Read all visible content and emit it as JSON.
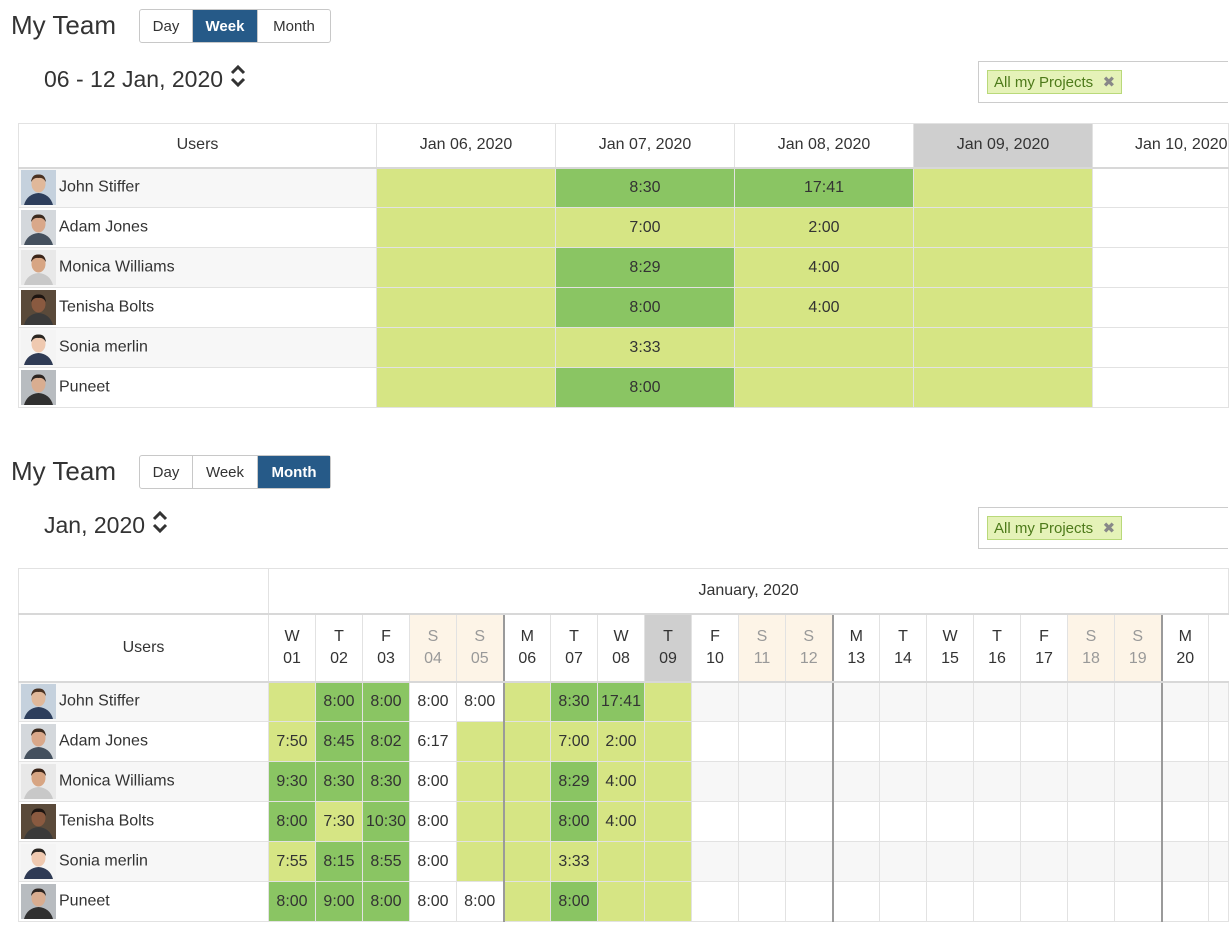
{
  "week_view": {
    "title": "My Team",
    "view_buttons": [
      "Day",
      "Week",
      "Month"
    ],
    "active_view": "Week",
    "period": "06 - 12 Jan, 2020",
    "filter_tag": "All my Projects",
    "users_header": "Users",
    "dates": [
      "Jan 06, 2020",
      "Jan 07, 2020",
      "Jan 08, 2020",
      "Jan 09, 2020",
      "Jan 10, 2020"
    ],
    "rows": [
      {
        "name": "John Stiffer",
        "cells": [
          "",
          "8:30",
          "17:41",
          "",
          ""
        ]
      },
      {
        "name": "Adam Jones",
        "cells": [
          "",
          "7:00",
          "2:00",
          "",
          ""
        ]
      },
      {
        "name": "Monica Williams",
        "cells": [
          "",
          "8:29",
          "4:00",
          "",
          ""
        ]
      },
      {
        "name": "Tenisha Bolts",
        "cells": [
          "",
          "8:00",
          "4:00",
          "",
          ""
        ]
      },
      {
        "name": "Sonia merlin",
        "cells": [
          "",
          "3:33",
          "",
          "",
          ""
        ]
      },
      {
        "name": "Puneet",
        "cells": [
          "",
          "8:00",
          "",
          "",
          ""
        ]
      }
    ]
  },
  "month_view": {
    "title": "My Team",
    "view_buttons": [
      "Day",
      "Week",
      "Month"
    ],
    "active_view": "Month",
    "period": "Jan, 2020",
    "filter_tag": "All my Projects",
    "month_label": "January, 2020",
    "users_header": "Users",
    "days": [
      {
        "wd": "W",
        "d": "01"
      },
      {
        "wd": "T",
        "d": "02"
      },
      {
        "wd": "F",
        "d": "03"
      },
      {
        "wd": "S",
        "d": "04"
      },
      {
        "wd": "S",
        "d": "05"
      },
      {
        "wd": "M",
        "d": "06"
      },
      {
        "wd": "T",
        "d": "07"
      },
      {
        "wd": "W",
        "d": "08"
      },
      {
        "wd": "T",
        "d": "09"
      },
      {
        "wd": "F",
        "d": "10"
      },
      {
        "wd": "S",
        "d": "11"
      },
      {
        "wd": "S",
        "d": "12"
      },
      {
        "wd": "M",
        "d": "13"
      },
      {
        "wd": "T",
        "d": "14"
      },
      {
        "wd": "W",
        "d": "15"
      },
      {
        "wd": "T",
        "d": "16"
      },
      {
        "wd": "F",
        "d": "17"
      },
      {
        "wd": "S",
        "d": "18"
      },
      {
        "wd": "S",
        "d": "19"
      },
      {
        "wd": "M",
        "d": "20"
      }
    ],
    "rows": [
      {
        "name": "John Stiffer",
        "cells": [
          "",
          "8:00",
          "8:00",
          "8:00",
          "8:00",
          "",
          "8:30",
          "17:41",
          "",
          "",
          "",
          "",
          "",
          "",
          "",
          "",
          "",
          "",
          "",
          ""
        ]
      },
      {
        "name": "Adam Jones",
        "cells": [
          "7:50",
          "8:45",
          "8:02",
          "6:17",
          "",
          "",
          "7:00",
          "2:00",
          "",
          "",
          "",
          "",
          "",
          "",
          "",
          "",
          "",
          "",
          "",
          ""
        ]
      },
      {
        "name": "Monica Williams",
        "cells": [
          "9:30",
          "8:30",
          "8:30",
          "8:00",
          "",
          "",
          "8:29",
          "4:00",
          "",
          "",
          "",
          "",
          "",
          "",
          "",
          "",
          "",
          "",
          "",
          ""
        ]
      },
      {
        "name": "Tenisha Bolts",
        "cells": [
          "8:00",
          "7:30",
          "10:30",
          "8:00",
          "",
          "",
          "8:00",
          "4:00",
          "",
          "",
          "",
          "",
          "",
          "",
          "",
          "",
          "",
          "",
          "",
          ""
        ]
      },
      {
        "name": "Sonia merlin",
        "cells": [
          "7:55",
          "8:15",
          "8:55",
          "8:00",
          "",
          "",
          "3:33",
          "",
          "",
          "",
          "",
          "",
          "",
          "",
          "",
          "",
          "",
          "",
          "",
          ""
        ]
      },
      {
        "name": "Puneet",
        "cells": [
          "8:00",
          "9:00",
          "8:00",
          "8:00",
          "8:00",
          "",
          "8:00",
          "",
          "",
          "",
          "",
          "",
          "",
          "",
          "",
          "",
          "",
          "",
          "",
          ""
        ]
      }
    ]
  },
  "colors": {
    "accent": "#265a88",
    "hours_light": "#d6e584",
    "hours_dark": "#8ac563",
    "weekend": "#fdf4e7",
    "today": "#cfcfcf"
  }
}
